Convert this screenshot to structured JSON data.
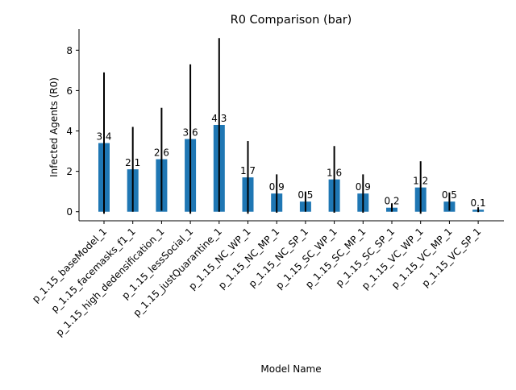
{
  "chart_data": {
    "type": "bar",
    "title": "R0 Comparison (bar)",
    "xlabel": "Model Name",
    "ylabel": "Infected Agents (R0)",
    "categories": [
      "p_1.15_baseModel_1",
      "p_1.15_facemasks_f1_1",
      "p_1.15_high_dedensification_1",
      "p_1.15_lessSocial_1",
      "p_1.15_justQuarantine_1",
      "p_1.15_NC_WP_1",
      "p_1.15_NC_MP_1",
      "p_1.15_NC_SP_1",
      "p_1.15_SC_WP_1",
      "p_1.15_SC_MP_1",
      "p_1.15_SC_SP_1",
      "p_1.15_VC_WP_1",
      "p_1.15_VC_MP_1",
      "p_1.15_VC_SP_1"
    ],
    "values": [
      3.4,
      2.1,
      2.6,
      3.6,
      4.3,
      1.7,
      0.9,
      0.5,
      1.6,
      0.9,
      0.2,
      1.2,
      0.5,
      0.1
    ],
    "value_labels": [
      "3.4",
      "2.1",
      "2.6",
      "3.6",
      "4.3",
      "1.7",
      "0.9",
      "0.5",
      "1.6",
      "0.9",
      "0.2",
      "1.2",
      "0.5",
      "0.1"
    ],
    "errors": [
      3.5,
      2.1,
      2.55,
      3.7,
      4.3,
      1.8,
      0.95,
      0.5,
      1.65,
      0.95,
      0.2,
      1.3,
      0.45,
      0.12
    ],
    "yticks": [
      0,
      2,
      4,
      6,
      8
    ],
    "ylim": [
      -0.45,
      9.05
    ],
    "grid": false,
    "legend": "none",
    "bar_color": "#1f77b4",
    "error_color": "#000000"
  }
}
